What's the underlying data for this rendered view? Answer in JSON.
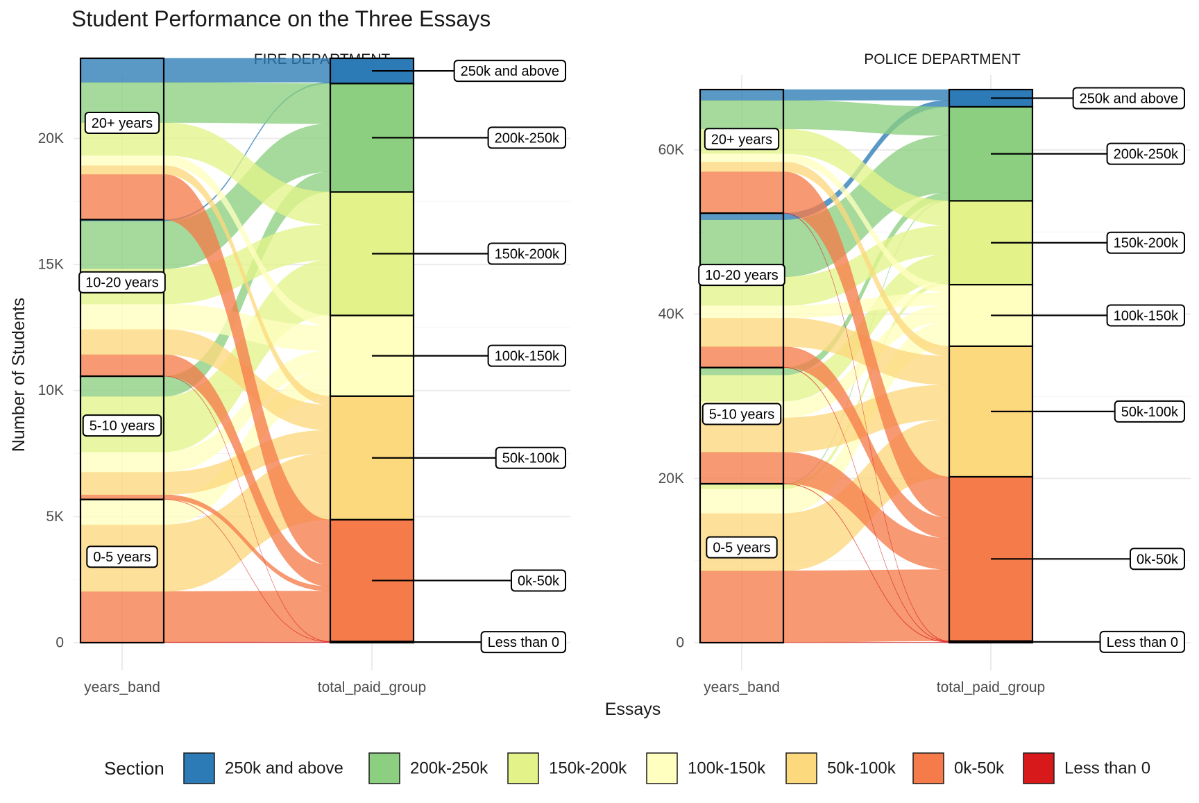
{
  "chart_data": {
    "type": "alluvial",
    "title": "Student Performance on the Three Essays",
    "xlabel": "Essays",
    "ylabel": "Number of Students",
    "legend": {
      "title": "Section",
      "placement": "bottom",
      "items": [
        "250k and above",
        "200k-250k",
        "150k-200k",
        "100k-150k",
        "50k-100k",
        "0k-50k",
        "Less than 0"
      ]
    },
    "colors": {
      "250k and above": "#2c7bb6",
      "200k-250k": "#8ccf80",
      "150k-200k": "#e3f38a",
      "100k-150k": "#ffffbf",
      "50k-100k": "#fdd97e",
      "0k-50k": "#f57c4a",
      "Less than 0": "#d7191c"
    },
    "axes": [
      "years_band",
      "total_paid_group"
    ],
    "grid": true,
    "panels": [
      {
        "name": "FIRE DEPARTMENT",
        "ylim": [
          0,
          21500
        ],
        "yticks": [
          {
            "value": 0,
            "label": "0"
          },
          {
            "value": 5000,
            "label": "5K"
          },
          {
            "value": 10000,
            "label": "10K"
          },
          {
            "value": 15000,
            "label": "15K"
          },
          {
            "value": 20000,
            "label": "20K"
          }
        ],
        "bands": [
          "0-5 years",
          "5-10 years",
          "10-20 years",
          "20+ years"
        ],
        "groups": [
          "Less than 0",
          "0k-50k",
          "50k-100k",
          "100k-150k",
          "150k-200k",
          "200k-250k",
          "250k and above"
        ],
        "flows": {
          "0-5 years": [
            30,
            2000,
            2650,
            1000,
            0,
            0,
            0
          ],
          "5-10 years": [
            10,
            180,
            900,
            800,
            2200,
            800,
            0
          ],
          "10-20 years": [
            10,
            850,
            1000,
            1000,
            1400,
            1900,
            50
          ],
          "20+ years": [
            0,
            1800,
            350,
            400,
            1300,
            1600,
            950
          ]
        }
      },
      {
        "name": "POLICE DEPARTMENT",
        "ylim": [
          0,
          66000
        ],
        "yticks": [
          {
            "value": 0,
            "label": "0"
          },
          {
            "value": 20000,
            "label": "20K"
          },
          {
            "value": 40000,
            "label": "40K"
          },
          {
            "value": 60000,
            "label": "60K"
          }
        ],
        "bands": [
          "0-5 years",
          "5-10 years",
          "10-20 years",
          "20+ years"
        ],
        "groups": [
          "Less than 0",
          "0k-50k",
          "50k-100k",
          "100k-150k",
          "150k-200k",
          "200k-250k",
          "250k and above"
        ],
        "flows": {
          "0-5 years": [
            50,
            8700,
            7000,
            3000,
            500,
            100,
            0
          ],
          "5-10 years": [
            50,
            3800,
            4200,
            2000,
            3200,
            900,
            0
          ],
          "10-20 years": [
            50,
            2500,
            3500,
            1500,
            3500,
            6950,
            800
          ],
          "20+ years": [
            50,
            5000,
            1200,
            1000,
            3000,
            3500,
            1300
          ]
        }
      }
    ]
  }
}
